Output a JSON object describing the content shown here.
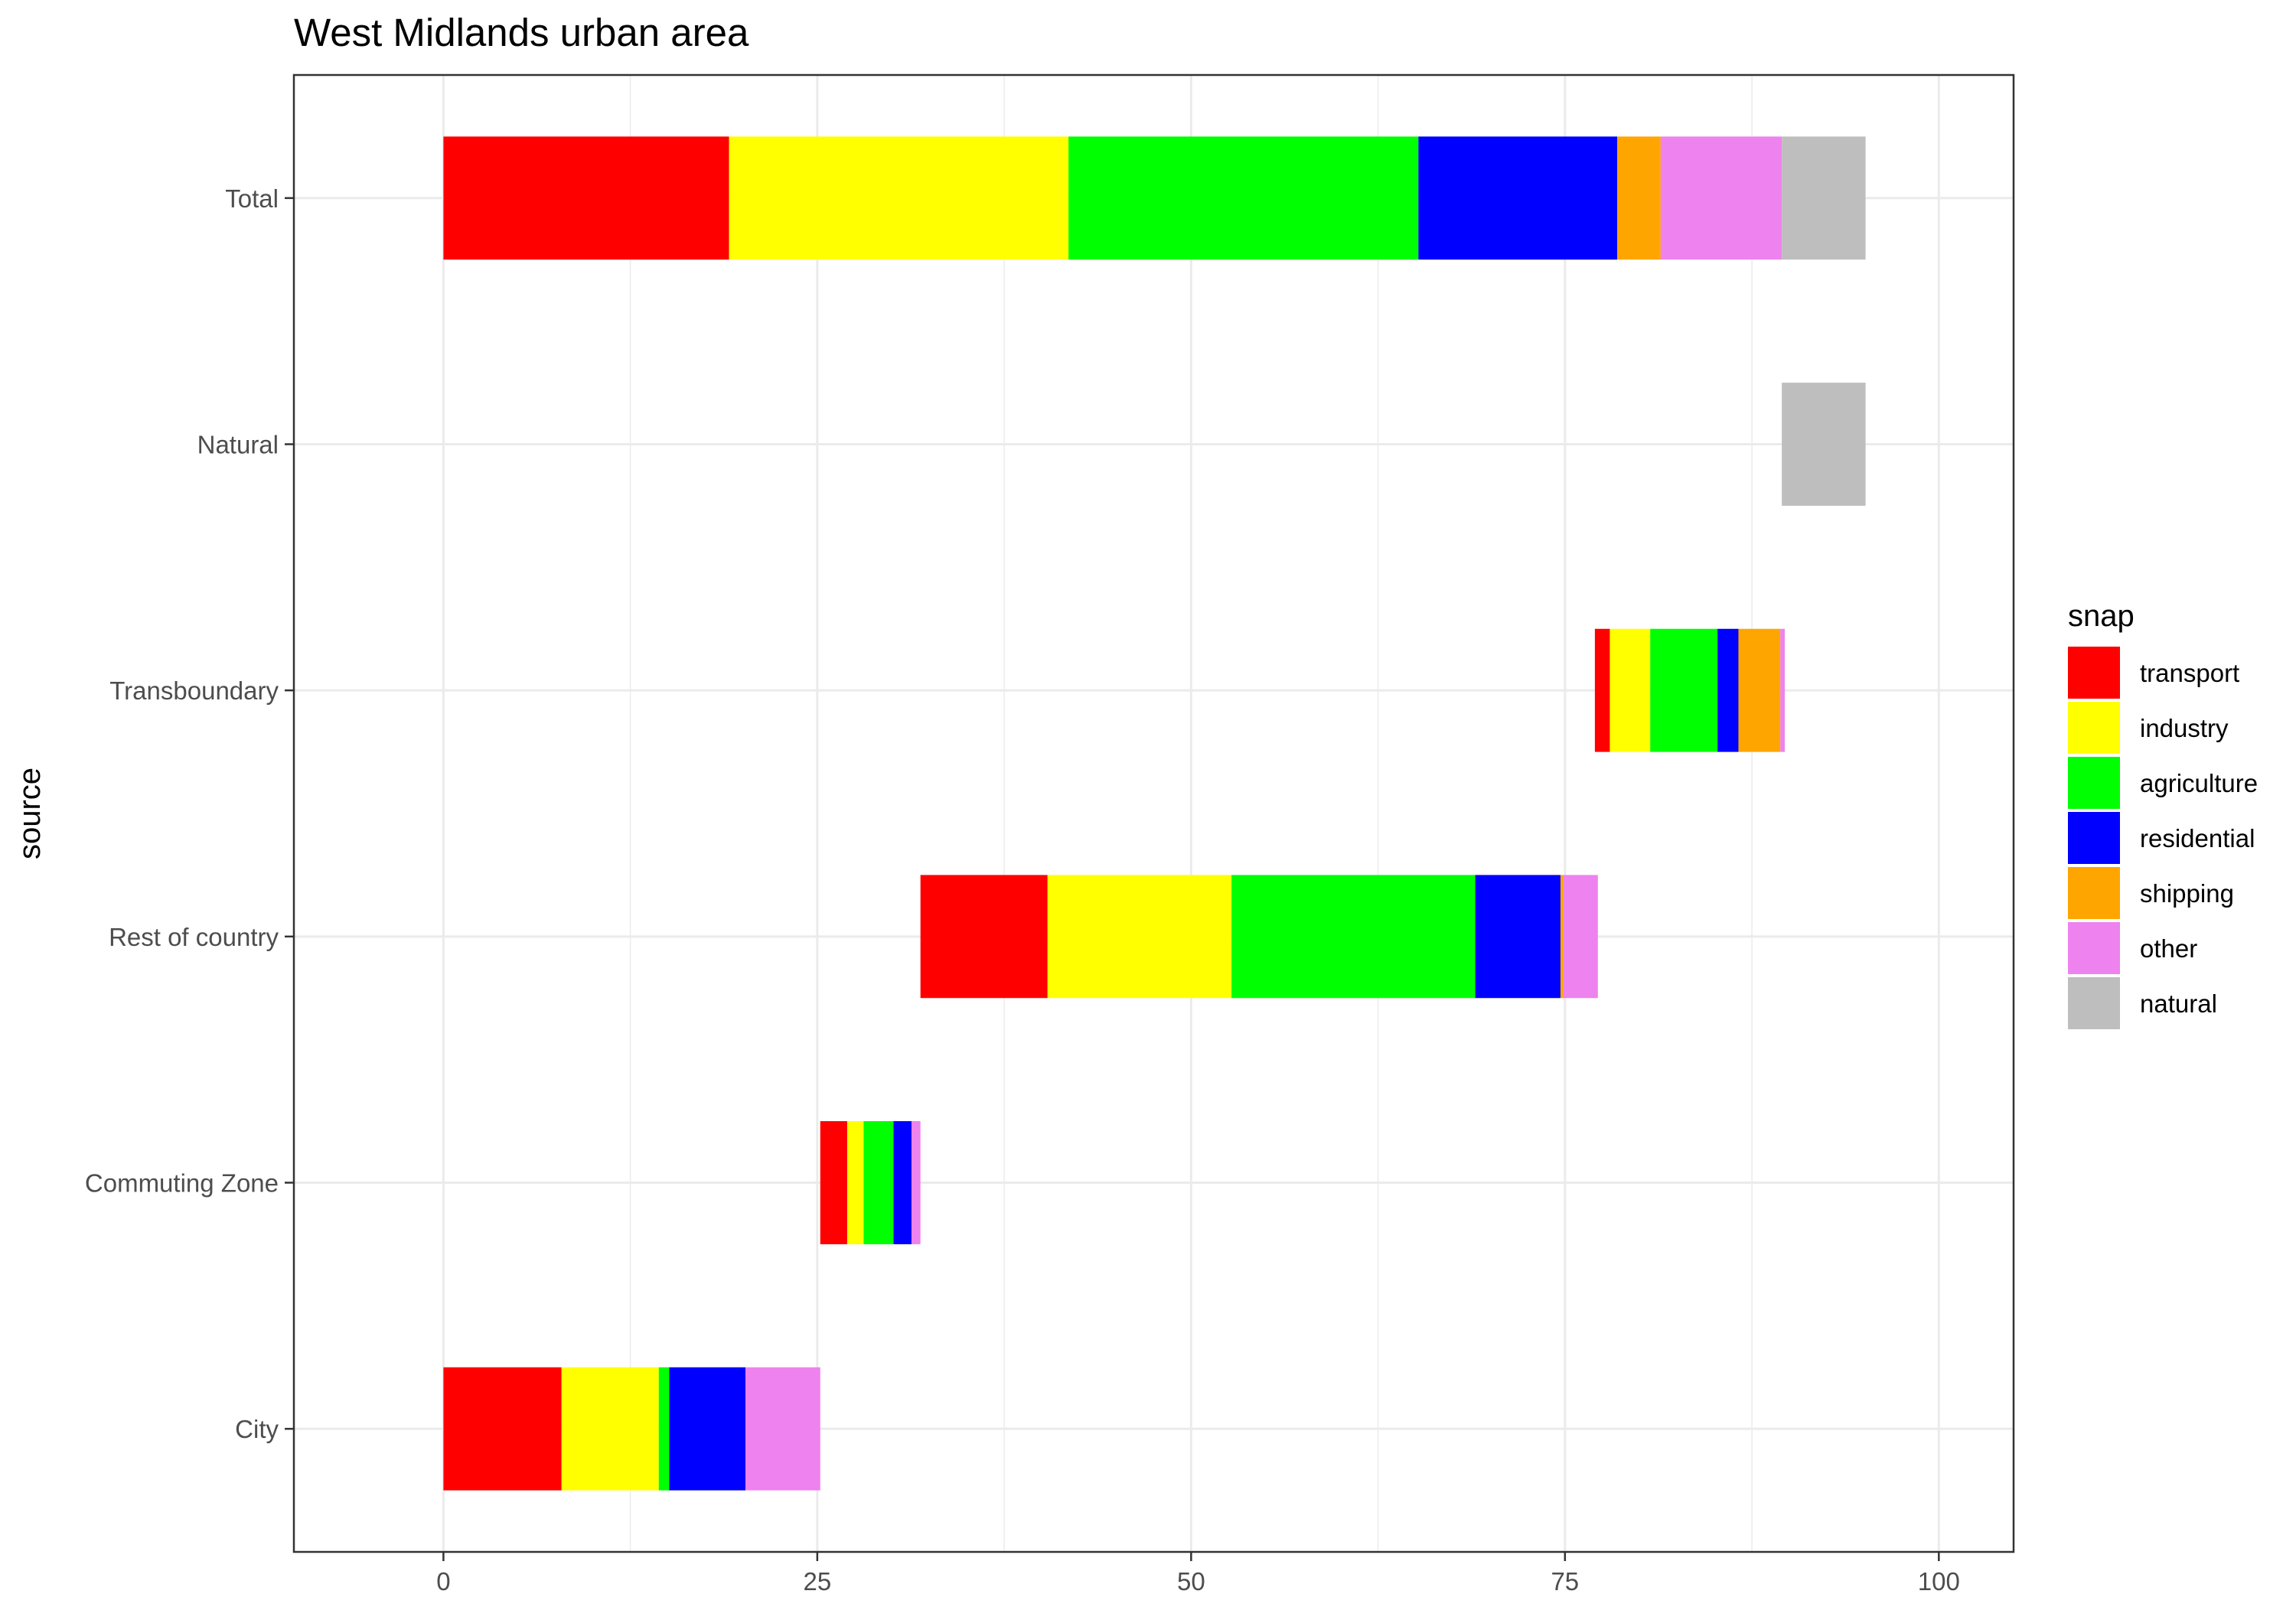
{
  "chart_data": {
    "type": "bar",
    "orientation": "horizontal",
    "layout": "floating-stacked",
    "title": "West Midlands urban area",
    "xlabel": "",
    "ylabel": "source",
    "xlim": [
      -10,
      105
    ],
    "x_ticks": [
      0,
      25,
      50,
      75,
      100
    ],
    "grid": true,
    "legend_title": "snap",
    "legend_position": "right",
    "categories": [
      "City",
      "Commuting Zone",
      "Rest of country",
      "Transboundary",
      "Natural",
      "Total"
    ],
    "series": [
      {
        "name": "transport",
        "color": "#ff0000",
        "values": [
          7.9,
          1.8,
          8.5,
          1.0,
          0,
          19.1
        ]
      },
      {
        "name": "industry",
        "color": "#ffff00",
        "values": [
          6.5,
          1.1,
          12.3,
          2.7,
          0,
          22.7
        ]
      },
      {
        "name": "agriculture",
        "color": "#00ff00",
        "values": [
          0.7,
          2.0,
          16.3,
          4.5,
          0,
          23.4
        ]
      },
      {
        "name": "residential",
        "color": "#0000ff",
        "values": [
          5.1,
          1.2,
          5.7,
          1.4,
          0,
          13.3
        ]
      },
      {
        "name": "shipping",
        "color": "#ffa500",
        "values": [
          0,
          0,
          0.2,
          2.8,
          0,
          2.9
        ]
      },
      {
        "name": "other",
        "color": "#ee82ee",
        "values": [
          5.0,
          0.6,
          2.3,
          0.3,
          0,
          8.1
        ]
      },
      {
        "name": "natural",
        "color": "#bebebe",
        "values": [
          0,
          0,
          0,
          0,
          5.6,
          5.6
        ]
      }
    ],
    "bar_starts": [
      0,
      25.2,
      31.9,
      77.0,
      89.5,
      0
    ]
  }
}
